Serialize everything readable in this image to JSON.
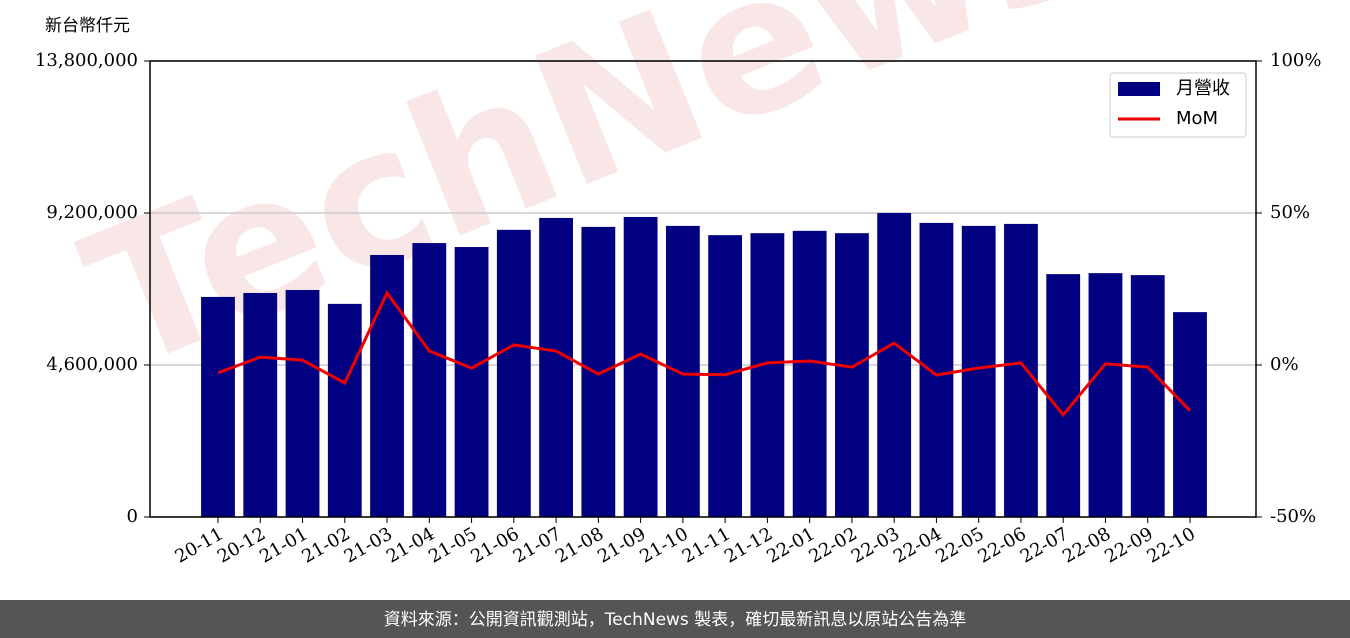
{
  "chart_data": {
    "type": "bar-line",
    "y_label": "新台幣仟元",
    "watermark": "TechNews",
    "footer": "資料來源：公開資訊觀測站，TechNews 製表，確切最新訊息以原站公告為準",
    "categories": [
      "20-11",
      "20-12",
      "21-01",
      "21-02",
      "21-03",
      "21-04",
      "21-05",
      "21-06",
      "21-07",
      "21-08",
      "21-09",
      "21-10",
      "21-11",
      "21-12",
      "22-01",
      "22-02",
      "22-03",
      "22-04",
      "22-05",
      "22-06",
      "22-07",
      "22-08",
      "22-09",
      "22-10"
    ],
    "series": [
      {
        "name": "月營收",
        "type": "bar",
        "color": "#000080",
        "values": [
          6660000,
          6780000,
          6870000,
          6450000,
          7930000,
          8290000,
          8170000,
          8690000,
          9050000,
          8780000,
          9080000,
          8810000,
          8530000,
          8590000,
          8660000,
          8590000,
          9200000,
          8900000,
          8810000,
          8870000,
          7350000,
          7380000,
          7320000,
          6200000
        ]
      },
      {
        "name": "MoM",
        "type": "line",
        "axis": "y2",
        "color": "#ee0000",
        "values": [
          -2.6,
          2.6,
          1.6,
          -5.9,
          23.7,
          4.6,
          -1.0,
          6.6,
          4.6,
          -3.0,
          3.6,
          -3.0,
          -3.2,
          0.7,
          1.3,
          -0.7,
          7.2,
          -3.3,
          -1.0,
          0.7,
          -16.4,
          0.4,
          -0.7,
          -15.0
        ]
      }
    ],
    "ylim": [
      0,
      13800000
    ],
    "yticks": [
      0,
      {
        "value": 4600000,
        "label": "4,600,000"
      },
      {
        "value": 9200000,
        "label": "9,200,000"
      },
      {
        "value": 13800000,
        "label": "13,800,000"
      }
    ],
    "y2lim": [
      -50,
      100
    ],
    "y2ticks": [
      {
        "value": -50,
        "label": "-50%"
      },
      {
        "value": 0,
        "label": "0%"
      },
      {
        "value": 50,
        "label": "50%"
      },
      {
        "value": 100,
        "label": "100%"
      }
    ],
    "grid": true,
    "legend": "upper right"
  }
}
